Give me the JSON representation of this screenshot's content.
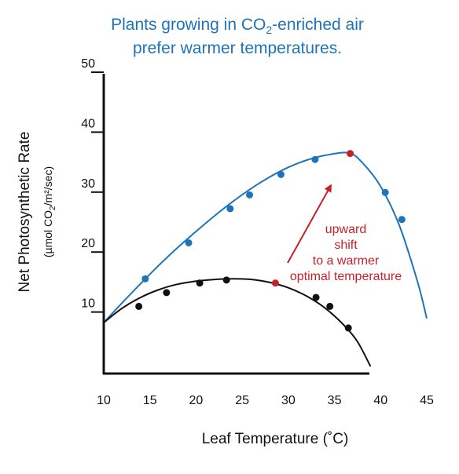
{
  "chart_data": {
    "type": "line",
    "title_line1": "Plants growing in CO",
    "title_sub": "2",
    "title_line1_rest": "-enriched air",
    "title_line2": "prefer warmer temperatures.",
    "xlabel": "Leaf Temperature (˚C)",
    "ylabel": "Net  Photosynthetic Rate",
    "ylabel_units_a": "(µmol CO",
    "ylabel_units_sub": "2",
    "ylabel_units_b": "/m²/sec)",
    "xlim": [
      10,
      45
    ],
    "ylim": [
      0,
      50
    ],
    "x_ticks": [
      10,
      15,
      20,
      25,
      30,
      35,
      40,
      45
    ],
    "y_ticks": [
      10,
      20,
      30,
      40,
      50
    ],
    "grid": false,
    "series": [
      {
        "color": "#1f74b8",
        "curve": [
          [
            10,
            8.5
          ],
          [
            12,
            11.8
          ],
          [
            14,
            15
          ],
          [
            16,
            18.1
          ],
          [
            18,
            21
          ],
          [
            20,
            23.7
          ],
          [
            22,
            26.3
          ],
          [
            24,
            28.7
          ],
          [
            26,
            30.9
          ],
          [
            28,
            32.8
          ],
          [
            30,
            34.4
          ],
          [
            32,
            35.6
          ],
          [
            34,
            36.4
          ],
          [
            36.5,
            36.8
          ],
          [
            38,
            35.2
          ],
          [
            40,
            31.2
          ],
          [
            42,
            24.8
          ],
          [
            44,
            15.3
          ],
          [
            45,
            9.2
          ]
        ],
        "points": [
          [
            14.5,
            15.8
          ],
          [
            19.2,
            21.8
          ],
          [
            23.7,
            27.5
          ],
          [
            25.8,
            29.8
          ],
          [
            29.2,
            33.2
          ],
          [
            32.9,
            35.7
          ],
          [
            40.5,
            30.2
          ],
          [
            42.3,
            25.7
          ]
        ],
        "optimum": [
          36.7,
          36.7
        ]
      },
      {
        "color": "#111111",
        "curve": [
          [
            10,
            8.5
          ],
          [
            12,
            10.9
          ],
          [
            14,
            12.7
          ],
          [
            16,
            14
          ],
          [
            18,
            14.9
          ],
          [
            20,
            15.4
          ],
          [
            22,
            15.7
          ],
          [
            24,
            15.8
          ],
          [
            26,
            15.7
          ],
          [
            28,
            15.2
          ],
          [
            30,
            14.3
          ],
          [
            32,
            12.9
          ],
          [
            34,
            10.9
          ],
          [
            36,
            8.1
          ],
          [
            37.5,
            5.3
          ],
          [
            38.9,
            1.2
          ]
        ],
        "points": [
          [
            13.8,
            11.2
          ],
          [
            16.8,
            13.5
          ],
          [
            20.4,
            15.1
          ],
          [
            23.3,
            15.6
          ],
          [
            33,
            12.7
          ],
          [
            34.5,
            11.2
          ],
          [
            36.5,
            7.6
          ]
        ],
        "optimum": [
          28.6,
          15.1
        ]
      }
    ],
    "annotation": {
      "lines": [
        "upward",
        "shift",
        "to a warmer",
        "optimal temperature"
      ],
      "color": "#c8202a"
    }
  }
}
